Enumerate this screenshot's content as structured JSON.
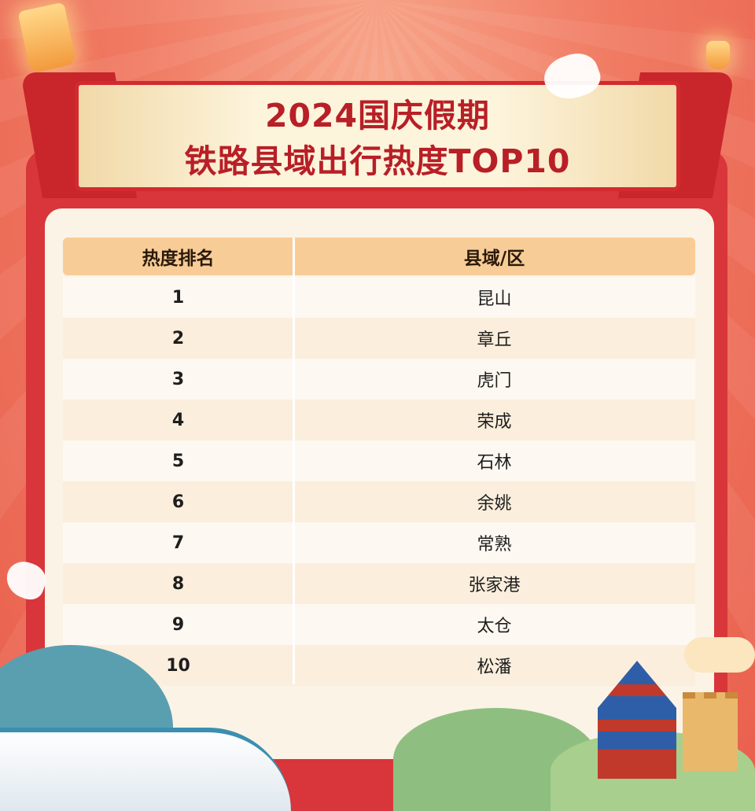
{
  "title": {
    "line1": "2024国庆假期",
    "line2": "铁路县域出行热度TOP10"
  },
  "table": {
    "headers": [
      "热度排名",
      "县域/区"
    ],
    "rows": [
      {
        "rank": "1",
        "county": "昆山"
      },
      {
        "rank": "2",
        "county": "章丘"
      },
      {
        "rank": "3",
        "county": "虎门"
      },
      {
        "rank": "4",
        "county": "荣成"
      },
      {
        "rank": "5",
        "county": "石林"
      },
      {
        "rank": "6",
        "county": "余姚"
      },
      {
        "rank": "7",
        "county": "常熟"
      },
      {
        "rank": "8",
        "county": "张家港"
      },
      {
        "rank": "9",
        "county": "太仓"
      },
      {
        "rank": "10",
        "county": "松潘"
      }
    ]
  },
  "colors": {
    "title_red": "#b81f26",
    "frame_red": "#d8363a",
    "header_bg": "#f8cc97",
    "card_bg": "#fbf3e6"
  },
  "decorations": [
    "sky-lantern-icon",
    "dove-icon",
    "high-speed-train-icon",
    "temple-of-heaven-icon",
    "great-wall-icon",
    "cloud-icon"
  ]
}
